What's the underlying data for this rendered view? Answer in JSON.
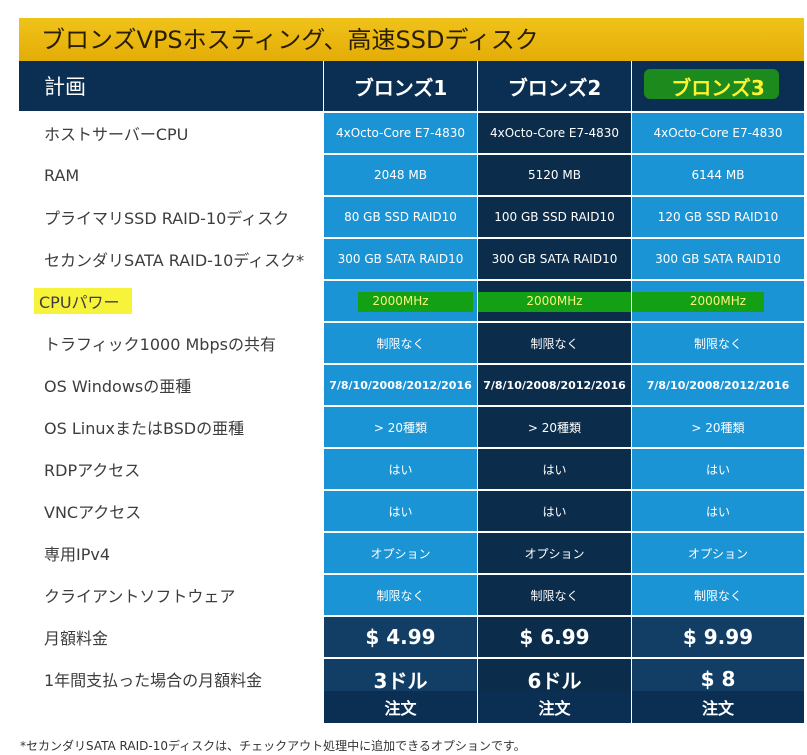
{
  "title": "ブロンズVPSホスティング、高速SSDディスク",
  "header": {
    "plan_label": "計画",
    "plans": [
      "ブロンズ1",
      "ブロンズ2",
      "ブロンズ3"
    ]
  },
  "rows": [
    {
      "label": "ホストサーバーCPU",
      "values": [
        "4xOcto-Core E7-4830",
        "4xOcto-Core E7-4830",
        "4xOcto-Core E7-4830"
      ]
    },
    {
      "label": "RAM",
      "values": [
        "2048 MB",
        "5120 MB",
        "6144 MB"
      ]
    },
    {
      "label": "プライマリSSD RAID-10ディスク",
      "values": [
        "80 GB SSD RAID10",
        "100 GB SSD RAID10",
        "120 GB SSD RAID10"
      ]
    },
    {
      "label": "セカンダリSATA RAID-10ディスク*",
      "values": [
        "300 GB SATA RAID10",
        "300 GB SATA RAID10",
        "300 GB SATA RAID10"
      ]
    },
    {
      "label": "CPUパワー",
      "values": [
        "2000MHz",
        "2000MHz",
        "2000MHz"
      ]
    },
    {
      "label": "トラフィック1000 Mbpsの共有",
      "values": [
        "制限なく",
        "制限なく",
        "制限なく"
      ]
    },
    {
      "label": "OS Windowsの亜種",
      "values": [
        "7/8/10/2008/2012/2016",
        "7/8/10/2008/2012/2016",
        "7/8/10/2008/2012/2016"
      ]
    },
    {
      "label": "OS LinuxまたはBSDの亜種",
      "values": [
        "> 20種類",
        "> 20種類",
        "> 20種類"
      ]
    },
    {
      "label": "RDPアクセス",
      "values": [
        "はい",
        "はい",
        "はい"
      ]
    },
    {
      "label": "VNCアクセス",
      "values": [
        "はい",
        "はい",
        "はい"
      ]
    },
    {
      "label": "専用IPv4",
      "values": [
        "オプション",
        "オプション",
        "オプション"
      ]
    },
    {
      "label": "クライアントソフトウェア",
      "values": [
        "制限なく",
        "制限なく",
        "制限なく"
      ]
    },
    {
      "label": "月額料金",
      "values": [
        "$ 4.99",
        "$ 6.99",
        "$ 9.99"
      ]
    },
    {
      "label": "1年間支払った場合の月額料金",
      "values": [
        "3ドル",
        "6ドル",
        "$ 8"
      ]
    }
  ],
  "order_label": "注文",
  "footnote": "*セカンダリSATA RAID-10ディスクは、チェックアウト処理中に追加できるオプションです。",
  "colors": {
    "banner": "#e8b40c",
    "header": "#0b2f52",
    "light_col": "#1a94d5",
    "dark_col": "#0b2c4a",
    "label_bg": "#e4e7ec",
    "highlight_yellow": "#f7f23a",
    "highlight_green": "#14a014"
  }
}
